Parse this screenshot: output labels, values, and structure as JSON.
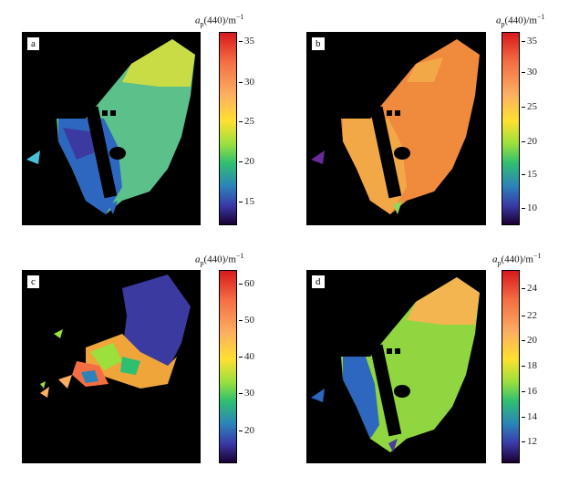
{
  "panels": [
    {
      "label": "a",
      "colorbar": {
        "ticks": [
          "35",
          "30",
          "25",
          "20",
          "15"
        ],
        "title_var": "a",
        "title_sub": "p",
        "title_rest": "(440)/m",
        "title_sup": "−1"
      }
    },
    {
      "label": "b",
      "colorbar": {
        "ticks": [
          "35",
          "30",
          "25",
          "20",
          "15",
          "10"
        ],
        "title_var": "a",
        "title_sub": "p",
        "title_rest": "(440)/m",
        "title_sup": "−1"
      }
    },
    {
      "label": "c",
      "colorbar": {
        "ticks": [
          "60",
          "50",
          "40",
          "30",
          "20"
        ],
        "title_var": "a",
        "title_sub": "p",
        "title_rest": "(440)/m",
        "title_sup": "−1"
      }
    },
    {
      "label": "d",
      "colorbar": {
        "ticks": [
          "24",
          "22",
          "20",
          "18",
          "16",
          "14",
          "12"
        ],
        "title_var": "a",
        "title_sub": "p",
        "title_rest": "(440)/m",
        "title_sup": "−1"
      }
    }
  ],
  "colors": {
    "map_background": "#000000",
    "scale": [
      "#d7191c",
      "#f46d43",
      "#fdae61",
      "#ffe030",
      "#9be03c",
      "#2fbf71",
      "#2b83ba",
      "#3a3aa8",
      "#1a0030"
    ]
  }
}
